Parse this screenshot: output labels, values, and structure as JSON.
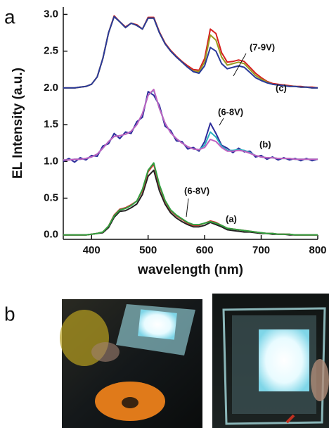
{
  "panel_labels": [
    "a",
    "b"
  ],
  "chart_data": {
    "type": "line",
    "ylabel": "EL Intensity (a.u.)",
    "xlabel": "wavelength (nm)",
    "xlim": [
      350,
      800
    ],
    "xticks": [
      400,
      500,
      600,
      700,
      800
    ],
    "ylim": [
      -0.06,
      3.1
    ],
    "yticks": [
      {
        "value": 0,
        "label": "0.0"
      },
      0.5,
      {
        "value": 1,
        "label": "1.0"
      },
      1.5,
      {
        "value": 2,
        "label": "2.0"
      },
      2.5,
      {
        "value": 3,
        "label": "3.0"
      }
    ],
    "annotations": [
      "(7-9V)",
      "(c)",
      "(6-8V)",
      "(b)",
      "(6-8V)",
      "(a)"
    ],
    "x": [
      350,
      360,
      370,
      380,
      390,
      400,
      410,
      420,
      430,
      440,
      450,
      460,
      470,
      480,
      490,
      500,
      510,
      520,
      530,
      540,
      550,
      560,
      570,
      580,
      590,
      600,
      610,
      620,
      630,
      640,
      650,
      660,
      670,
      680,
      690,
      700,
      710,
      720,
      730,
      740,
      750,
      760,
      770,
      780,
      790,
      800
    ],
    "series": [
      {
        "color": "#d62020",
        "values": [
          2.0,
          2.0,
          2.0,
          2.01,
          2.02,
          2.05,
          2.15,
          2.4,
          2.75,
          2.98,
          2.9,
          2.83,
          2.88,
          2.86,
          2.8,
          2.96,
          2.96,
          2.76,
          2.61,
          2.51,
          2.43,
          2.36,
          2.3,
          2.25,
          2.24,
          2.4,
          2.8,
          2.74,
          2.48,
          2.35,
          2.36,
          2.38,
          2.36,
          2.28,
          2.2,
          2.14,
          2.09,
          2.06,
          2.05,
          2.04,
          2.03,
          2.02,
          2.02,
          2.01,
          2.01,
          2.0
        ]
      },
      {
        "color": "#9a9a20",
        "values": [
          2.0,
          2.0,
          2.0,
          2.01,
          2.02,
          2.05,
          2.15,
          2.4,
          2.75,
          2.97,
          2.9,
          2.82,
          2.88,
          2.85,
          2.8,
          2.95,
          2.95,
          2.75,
          2.6,
          2.5,
          2.42,
          2.35,
          2.28,
          2.23,
          2.22,
          2.35,
          2.72,
          2.65,
          2.42,
          2.31,
          2.33,
          2.35,
          2.33,
          2.25,
          2.17,
          2.12,
          2.08,
          2.05,
          2.04,
          2.03,
          2.02,
          2.02,
          2.01,
          2.01,
          2.0,
          2.0
        ]
      },
      {
        "color": "#2a3a9a",
        "values": [
          2.0,
          2.0,
          2.0,
          2.01,
          2.02,
          2.05,
          2.15,
          2.4,
          2.75,
          2.97,
          2.9,
          2.82,
          2.88,
          2.85,
          2.8,
          2.95,
          2.95,
          2.75,
          2.6,
          2.5,
          2.42,
          2.35,
          2.28,
          2.22,
          2.2,
          2.3,
          2.55,
          2.5,
          2.33,
          2.26,
          2.28,
          2.3,
          2.28,
          2.21,
          2.14,
          2.1,
          2.07,
          2.05,
          2.04,
          2.03,
          2.02,
          2.02,
          2.01,
          2.01,
          2.0,
          2.0
        ]
      },
      {
        "color": "#2b2b9a",
        "values": [
          1.0,
          1.04,
          0.99,
          1.05,
          1.02,
          1.08,
          1.07,
          1.21,
          1.24,
          1.38,
          1.31,
          1.4,
          1.38,
          1.54,
          1.6,
          1.95,
          1.9,
          1.76,
          1.48,
          1.42,
          1.28,
          1.27,
          1.17,
          1.19,
          1.14,
          1.27,
          1.52,
          1.38,
          1.22,
          1.18,
          1.12,
          1.18,
          1.13,
          1.14,
          1.06,
          1.08,
          1.03,
          1.06,
          1.02,
          1.05,
          1.02,
          1.04,
          1.01,
          1.04,
          1.01,
          1.03
        ]
      },
      {
        "color": "#2ab0c0",
        "values": [
          1.02,
          1.02,
          1.03,
          1.03,
          1.04,
          1.06,
          1.1,
          1.18,
          1.27,
          1.34,
          1.35,
          1.37,
          1.41,
          1.5,
          1.65,
          1.9,
          1.97,
          1.72,
          1.52,
          1.39,
          1.31,
          1.25,
          1.2,
          1.17,
          1.16,
          1.22,
          1.4,
          1.33,
          1.21,
          1.15,
          1.15,
          1.16,
          1.15,
          1.12,
          1.08,
          1.06,
          1.05,
          1.05,
          1.04,
          1.04,
          1.04,
          1.03,
          1.03,
          1.03,
          1.03,
          1.03
        ]
      },
      {
        "color": "#c060c0",
        "values": [
          1.02,
          1.02,
          1.03,
          1.03,
          1.04,
          1.06,
          1.1,
          1.18,
          1.27,
          1.34,
          1.35,
          1.37,
          1.41,
          1.5,
          1.65,
          1.9,
          1.98,
          1.72,
          1.52,
          1.39,
          1.31,
          1.25,
          1.2,
          1.17,
          1.16,
          1.19,
          1.3,
          1.27,
          1.19,
          1.14,
          1.14,
          1.15,
          1.14,
          1.11,
          1.08,
          1.06,
          1.05,
          1.05,
          1.04,
          1.04,
          1.04,
          1.03,
          1.03,
          1.03,
          1.03,
          1.03
        ]
      },
      {
        "color": "#222222",
        "values": [
          0,
          0,
          0,
          0,
          0,
          0.01,
          0.02,
          0.03,
          0.1,
          0.24,
          0.32,
          0.33,
          0.37,
          0.42,
          0.55,
          0.8,
          0.88,
          0.6,
          0.42,
          0.3,
          0.23,
          0.18,
          0.14,
          0.11,
          0.11,
          0.13,
          0.17,
          0.14,
          0.11,
          0.07,
          0.06,
          0.05,
          0.04,
          0.04,
          0.03,
          0.02,
          0.02,
          0.01,
          0.01,
          0.01,
          0,
          0,
          0,
          0,
          0,
          0
        ]
      },
      {
        "color": "#d03030",
        "values": [
          0,
          0,
          0,
          0,
          0,
          0.01,
          0.02,
          0.04,
          0.12,
          0.27,
          0.35,
          0.37,
          0.41,
          0.46,
          0.6,
          0.86,
          0.96,
          0.66,
          0.46,
          0.33,
          0.26,
          0.21,
          0.16,
          0.13,
          0.13,
          0.16,
          0.19,
          0.17,
          0.13,
          0.09,
          0.08,
          0.07,
          0.06,
          0.05,
          0.04,
          0.03,
          0.02,
          0.02,
          0.01,
          0.01,
          0.01,
          0,
          0,
          0,
          0,
          0
        ]
      },
      {
        "color": "#30a040",
        "values": [
          0,
          0,
          0,
          0,
          0,
          0.01,
          0.02,
          0.04,
          0.12,
          0.26,
          0.34,
          0.36,
          0.4,
          0.46,
          0.62,
          0.88,
          0.98,
          0.68,
          0.47,
          0.34,
          0.27,
          0.22,
          0.17,
          0.14,
          0.14,
          0.16,
          0.18,
          0.16,
          0.13,
          0.09,
          0.08,
          0.07,
          0.06,
          0.05,
          0.04,
          0.03,
          0.02,
          0.02,
          0.01,
          0.01,
          0.01,
          0,
          0,
          0,
          0,
          0
        ]
      }
    ]
  }
}
